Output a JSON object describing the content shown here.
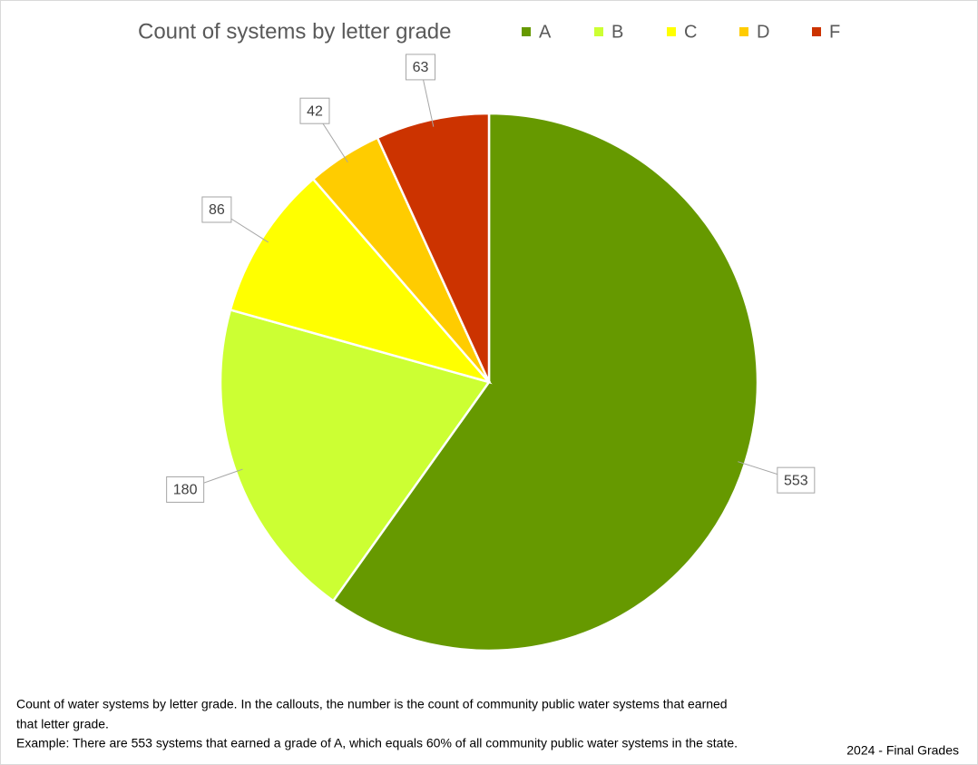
{
  "chart_data": {
    "type": "pie",
    "title": "Count of systems by letter grade",
    "categories": [
      "A",
      "B",
      "C",
      "D",
      "F"
    ],
    "values": [
      553,
      180,
      86,
      42,
      63
    ],
    "colors": [
      "#669900",
      "#ccff33",
      "#ffff00",
      "#ffcc00",
      "#cc3300"
    ],
    "legend": "top",
    "notes": [
      "Count of water systems by letter grade. In the callouts, the number is the count of community public water systems that earned",
      "that letter grade.",
      "Example: There are 553 systems that earned a grade of A, which equals 60% of all community public water systems in the state."
    ],
    "footer": "2024 - Final Grades"
  }
}
